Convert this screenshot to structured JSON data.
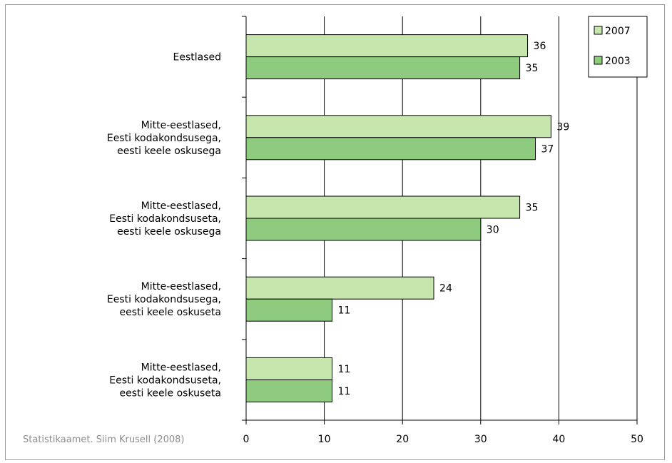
{
  "chart_data": {
    "type": "bar",
    "orientation": "horizontal",
    "categories": [
      [
        "Eestlased"
      ],
      [
        "Mitte-eestlased,",
        "Eesti kodakondsusega,",
        "eesti keele oskusega"
      ],
      [
        "Mitte-eestlased,",
        "Eesti kodakondsuseta,",
        "eesti keele oskusega"
      ],
      [
        "Mitte-eestlased,",
        "Eesti kodakondsusega,",
        "eesti keele oskuseta"
      ],
      [
        "Mitte-eestlased,",
        "Eesti kodakondsuseta,",
        "eesti keele oskuseta"
      ]
    ],
    "series": [
      {
        "name": "2007",
        "values": [
          36,
          39,
          35,
          24,
          11
        ],
        "color": "#c6e6ad"
      },
      {
        "name": "2003",
        "values": [
          35,
          37,
          30,
          11,
          11
        ],
        "color": "#8ecb7f"
      }
    ],
    "xlim": [
      0,
      50
    ],
    "xticks": [
      "0",
      "10",
      "20",
      "30",
      "40",
      "50"
    ],
    "grid": "vertical",
    "legend_position": "top-right",
    "source": "Statistikaamet. Siim Krusell (2008)"
  }
}
